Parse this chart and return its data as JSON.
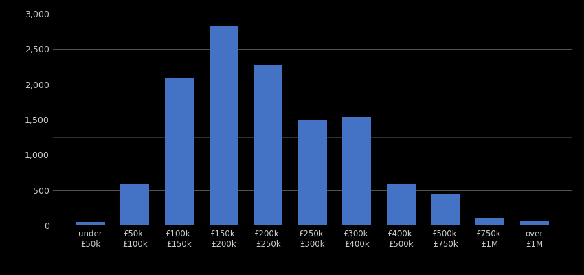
{
  "categories": [
    "under\n£50k",
    "£50k-\n£100k",
    "£100k-\n£150k",
    "£150k-\n£200k",
    "£200k-\n£250k",
    "£250k-\n£300k",
    "£300k-\n£400k",
    "£400k-\n£500k",
    "£500k-\n£750k",
    "£750k-\n£1M",
    "over\n£1M"
  ],
  "values": [
    50,
    590,
    2080,
    2820,
    2270,
    1490,
    1540,
    580,
    450,
    110,
    60
  ],
  "bar_color": "#4472c4",
  "background_color": "#000000",
  "text_color": "#cccccc",
  "grid_color": "#555555",
  "ylim": [
    0,
    3000
  ],
  "yticks": [
    0,
    500,
    1000,
    1500,
    2000,
    2500,
    3000
  ],
  "minor_ytick_interval": 250,
  "title": "",
  "xlabel": "",
  "ylabel": ""
}
